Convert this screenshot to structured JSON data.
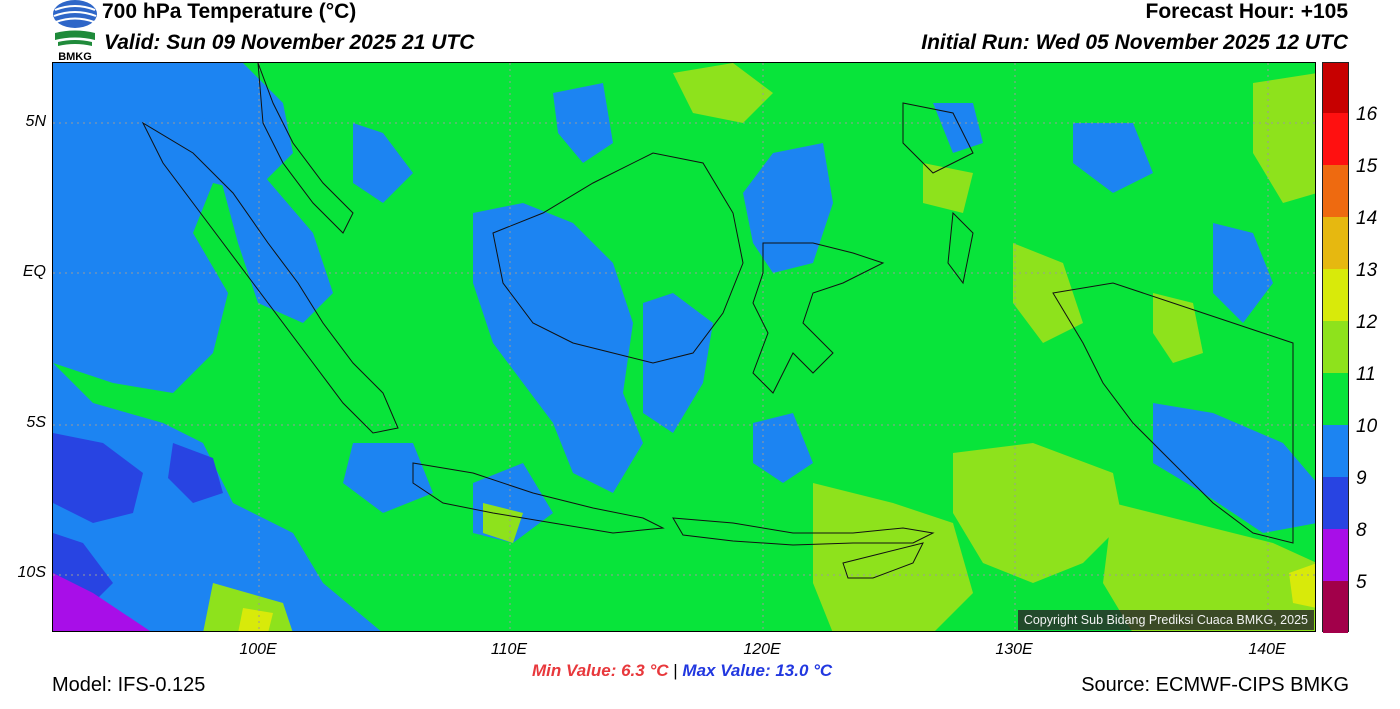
{
  "header": {
    "title": "700 hPa Temperature (°C)",
    "valid": "Valid: Sun 09 November 2025 21 UTC",
    "forecast_hour": "Forecast Hour: +105",
    "initial_run": "Initial Run: Wed 05 November 2025 12 UTC"
  },
  "logo": {
    "text": "BMKG"
  },
  "map": {
    "region": "Indonesia",
    "background_color": "#08e43a",
    "lat_labels": [
      "5N",
      "EQ",
      "5S",
      "10S"
    ],
    "lon_labels": [
      "100E",
      "110E",
      "120E",
      "130E",
      "140E"
    ]
  },
  "colorbar": {
    "labels": [
      "16",
      "15",
      "14",
      "13",
      "12",
      "11",
      "10",
      "9",
      "8",
      "5"
    ],
    "colors": [
      "#c70000",
      "#ff1010",
      "#ee6a10",
      "#e6b810",
      "#d8ea0a",
      "#8ee21c",
      "#08e43a",
      "#1c84f2",
      "#2844e2",
      "#a80ee8",
      "#a2004a"
    ]
  },
  "copyright": "Copyright Sub Bidang Prediksi Cuaca BMKG, 2025",
  "stats": {
    "min": "Min Value: 6.3 °C",
    "separator": "|",
    "max": "Max Value: 13.0 °C"
  },
  "footer": {
    "model": "Model: IFS-0.125",
    "source": "Source: ECMWF-CIPS BMKG"
  }
}
